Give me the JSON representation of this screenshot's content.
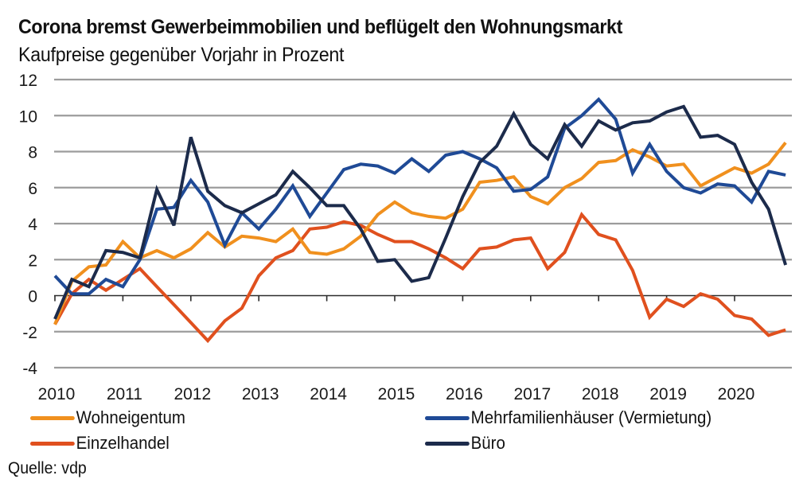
{
  "header": {
    "title": "Corona bremst Gewerbeimmobilien und beflügelt den Wohnungsmarkt",
    "subtitle": "Kaufpreise gegenüber Vorjahr in Prozent"
  },
  "source": "Quelle: vdp",
  "chart_data": {
    "type": "line",
    "title": "Corona bremst Gewerbeimmobilien und beflügelt den Wohnungsmarkt",
    "subtitle": "Kaufpreise gegenüber Vorjahr in Prozent",
    "xlabel": "",
    "ylabel": "",
    "frequency": "quarterly",
    "x_start": "2010 Q1",
    "x_end": "2020 Q4",
    "x_tick_labels": [
      "2010",
      "2011",
      "2012",
      "2013",
      "2014",
      "2015",
      "2016",
      "2017",
      "2018",
      "2019",
      "2020"
    ],
    "y_tick_labels": [
      "12",
      "10",
      "8",
      "6",
      "4",
      "2",
      "0",
      "-2",
      "-4"
    ],
    "y_ticks": [
      12,
      10,
      8,
      6,
      4,
      2,
      0,
      -2,
      -4
    ],
    "ylim": [
      -4,
      12
    ],
    "grid": true,
    "legend_position": "bottom",
    "series": [
      {
        "name": "Wohneigentum",
        "color": "#F0901E",
        "values": [
          -1.6,
          0.8,
          1.6,
          1.7,
          3.0,
          2.1,
          2.5,
          2.1,
          2.6,
          3.5,
          2.7,
          3.3,
          3.2,
          3.0,
          3.7,
          2.4,
          2.3,
          2.6,
          3.3,
          4.5,
          5.2,
          4.6,
          4.4,
          4.3,
          4.8,
          6.3,
          6.4,
          6.6,
          5.5,
          5.1,
          6.0,
          6.5,
          7.4,
          7.5,
          8.1,
          7.7,
          7.2,
          7.3,
          6.1,
          6.6,
          7.1,
          6.8,
          7.3,
          8.5
        ]
      },
      {
        "name": "Mehrfamilienhäuser (Vermietung)",
        "color": "#1F4A96",
        "values": [
          1.1,
          0.1,
          0.1,
          0.9,
          0.5,
          2.0,
          4.8,
          4.9,
          6.4,
          5.2,
          2.8,
          4.6,
          3.7,
          4.8,
          6.1,
          4.4,
          5.7,
          7.0,
          7.3,
          7.2,
          6.8,
          7.6,
          6.9,
          7.8,
          8.0,
          7.6,
          7.1,
          5.8,
          5.9,
          6.6,
          9.3,
          10.0,
          10.9,
          9.8,
          6.8,
          8.4,
          6.9,
          6.0,
          5.7,
          6.2,
          6.1,
          5.2,
          6.9,
          6.7
        ]
      },
      {
        "name": "Einzelhandel",
        "color": "#E0501E",
        "values": [
          -1.6,
          0.1,
          0.9,
          0.3,
          0.9,
          1.5,
          0.5,
          -0.5,
          -1.5,
          -2.5,
          -1.4,
          -0.7,
          1.1,
          2.1,
          2.5,
          3.7,
          3.8,
          4.1,
          3.9,
          3.4,
          3.0,
          3.0,
          2.6,
          2.1,
          1.5,
          2.6,
          2.7,
          3.1,
          3.2,
          1.5,
          2.4,
          4.5,
          3.4,
          3.1,
          1.4,
          -1.2,
          -0.2,
          -0.6,
          0.1,
          -0.2,
          -1.1,
          -1.3,
          -2.2,
          -1.9
        ]
      },
      {
        "name": "Büro",
        "color": "#1C2B4B",
        "values": [
          -1.3,
          0.9,
          0.5,
          2.5,
          2.4,
          2.1,
          5.9,
          3.9,
          8.8,
          5.8,
          5.0,
          4.6,
          5.1,
          5.6,
          6.9,
          6.0,
          5.0,
          5.0,
          3.7,
          1.9,
          2.0,
          0.8,
          1.0,
          3.2,
          5.5,
          7.4,
          8.3,
          10.1,
          8.4,
          7.6,
          9.5,
          8.3,
          9.7,
          9.2,
          9.6,
          9.7,
          10.2,
          10.5,
          8.8,
          8.9,
          8.4,
          6.3,
          4.8,
          1.7
        ]
      }
    ]
  }
}
